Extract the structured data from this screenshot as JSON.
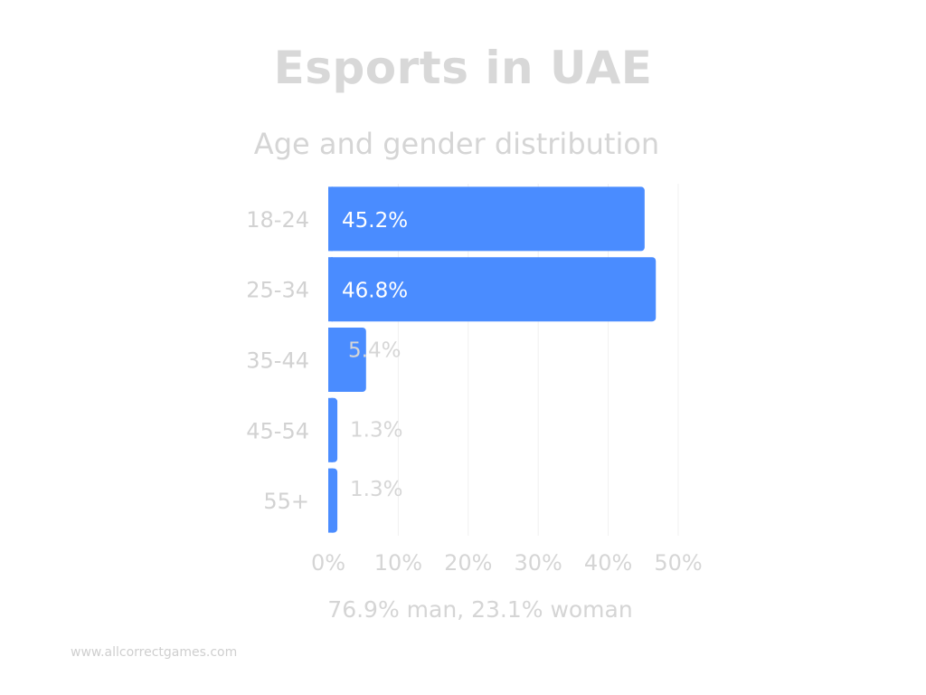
{
  "chart_data": {
    "type": "bar",
    "orientation": "horizontal",
    "title": "Esports in UAE",
    "subtitle": "Age and gender distribution",
    "categories": [
      "18-24",
      "25-34",
      "35-44",
      "45-54",
      "55+"
    ],
    "values": [
      45.2,
      46.8,
      5.4,
      1.3,
      1.3
    ],
    "value_labels": [
      "45.2%",
      "46.8%",
      "5.4%",
      "1.3%",
      "1.3%"
    ],
    "xlim": [
      0,
      50
    ],
    "x_ticks": [
      0,
      10,
      20,
      30,
      40,
      50
    ],
    "x_tick_labels": [
      "0%",
      "10%",
      "20%",
      "30%",
      "40%",
      "50%"
    ],
    "grid": true,
    "bar_color": "#4a8cff",
    "annotation": "76.9% man, 23.1% woman"
  },
  "source": "www.allcorrectgames.com"
}
